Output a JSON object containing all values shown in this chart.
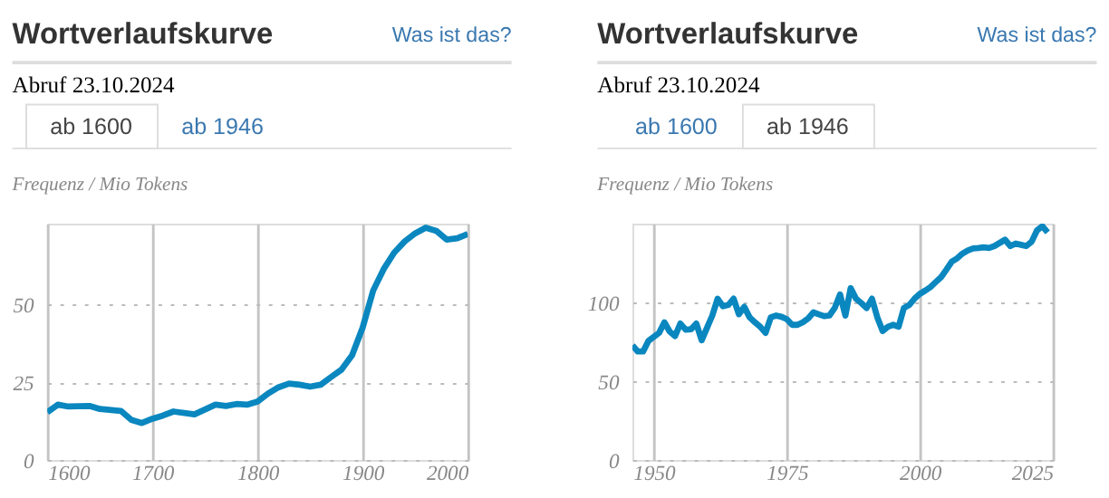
{
  "chart_data": [
    {
      "type": "line",
      "title": "Wortverlaufskurve",
      "ylabel": "Frequenz / Mio Tokens",
      "annotations": [
        "Was ist das?",
        "Abruf 23.10.2024",
        "ab 1600",
        "ab 1946"
      ],
      "x": [
        1600,
        1610,
        1620,
        1640,
        1650,
        1670,
        1680,
        1690,
        1700,
        1710,
        1720,
        1740,
        1760,
        1770,
        1780,
        1790,
        1800,
        1810,
        1820,
        1830,
        1840,
        1850,
        1860,
        1870,
        1880,
        1890,
        1900,
        1910,
        1920,
        1930,
        1940,
        1950,
        1960,
        1970,
        1980,
        1990,
        2000
      ],
      "series": [
        {
          "color": "#0a87bf",
          "values": [
            15.4,
            17.8,
            17.2,
            17.4,
            16.4,
            15.8,
            12.9,
            11.9,
            13.3,
            14.3,
            15.6,
            14.7,
            17.8,
            17.4,
            18,
            17.8,
            18.8,
            21.4,
            23.4,
            24.6,
            24.2,
            23.6,
            24.2,
            26.7,
            29.1,
            33.7,
            42.6,
            54.5,
            61.4,
            66.7,
            70.3,
            72.9,
            74.7,
            73.7,
            70.9,
            71.3,
            72.7
          ]
        }
      ],
      "xlim": [
        1600,
        2000
      ],
      "xticks": [
        1600,
        1700,
        1800,
        1900,
        2000
      ],
      "ylim": [
        0,
        76
      ],
      "yticks": [
        0,
        25,
        50
      ],
      "grid": true,
      "line_style": "solid",
      "marker": "none"
    },
    {
      "type": "line",
      "title": "Wortverlaufskurve",
      "ylabel": "Frequenz / Mio Tokens",
      "annotations": [
        "Was ist das?",
        "Abruf 23.10.2024",
        "ab 1600",
        "ab 1946"
      ],
      "x": [
        1946,
        1947,
        1948,
        1949,
        1951,
        1952,
        1953,
        1954,
        1955,
        1956,
        1957,
        1958,
        1959,
        1960,
        1961,
        1962,
        1963,
        1964,
        1965,
        1966,
        1967,
        1968,
        1969,
        1970,
        1971,
        1972,
        1973,
        1974,
        1975,
        1976,
        1977,
        1978,
        1979,
        1980,
        1981,
        1982,
        1983,
        1984,
        1985,
        1986,
        1987,
        1988,
        1989,
        1990,
        1991,
        1992,
        1993,
        1994,
        1995,
        1996,
        1997,
        1998,
        1999,
        2000,
        2001,
        2002,
        2003,
        2004,
        2005,
        2006,
        2007,
        2008,
        2009,
        2010,
        2011,
        2012,
        2013,
        2014,
        2015,
        2016,
        2017,
        2018,
        2019,
        2020,
        2021,
        2022,
        2023,
        2024
      ],
      "series": [
        {
          "color": "#0a87bf",
          "values": [
            72.8,
            68.9,
            68.9,
            75.6,
            80.7,
            87.4,
            81.5,
            78.7,
            86.6,
            82.7,
            83,
            86.6,
            76,
            83.9,
            91.7,
            102.4,
            97.6,
            98.4,
            102.4,
            92.5,
            97.2,
            90.6,
            87.4,
            84.6,
            80.7,
            90.6,
            91.7,
            90.9,
            89.4,
            85.8,
            85.8,
            87.4,
            89.8,
            93.7,
            92.5,
            91.3,
            91.7,
            96.5,
            105.1,
            91.7,
            109.1,
            102.4,
            99.6,
            96.5,
            102.4,
            90.6,
            81.9,
            84.6,
            85.8,
            84.6,
            96.5,
            98.4,
            102.4,
            105.5,
            107.5,
            109.8,
            113,
            116.1,
            120.9,
            126,
            128,
            131,
            133,
            134.3,
            134.6,
            135,
            134.6,
            135.8,
            137.8,
            139.8,
            135.8,
            137.4,
            136.6,
            135.8,
            138.6,
            145.7,
            148.4,
            144.5
          ]
        }
      ],
      "xlim": [
        1946,
        2025
      ],
      "xticks": [
        1950,
        1975,
        2000,
        2025
      ],
      "ylim": [
        0,
        150
      ],
      "yticks": [
        0,
        50,
        100
      ],
      "grid": true,
      "line_style": "solid",
      "marker": "none"
    }
  ]
}
